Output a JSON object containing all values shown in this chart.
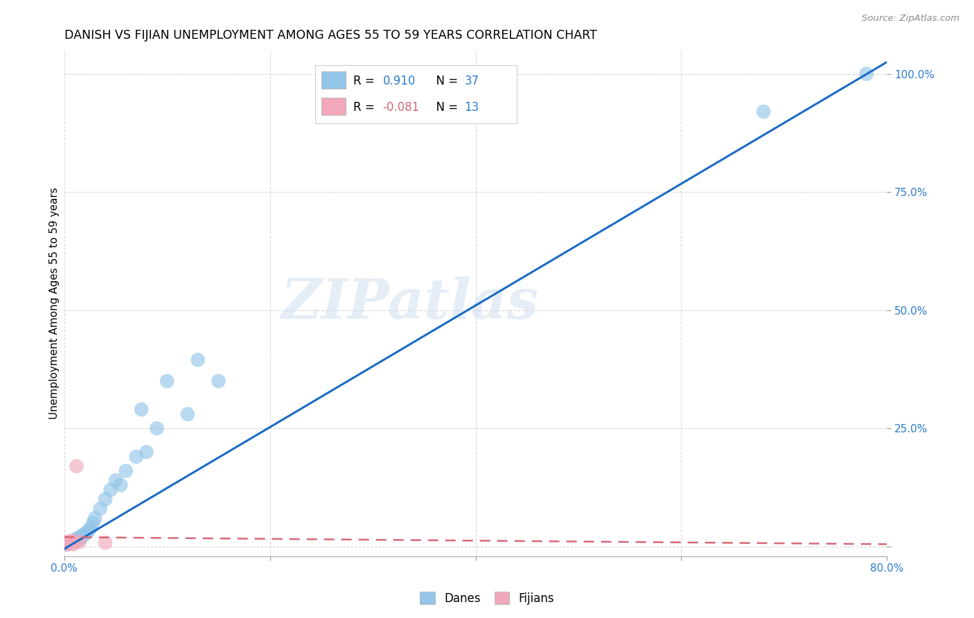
{
  "title": "DANISH VS FIJIAN UNEMPLOYMENT AMONG AGES 55 TO 59 YEARS CORRELATION CHART",
  "source": "Source: ZipAtlas.com",
  "ylabel": "Unemployment Among Ages 55 to 59 years",
  "xlim": [
    0.0,
    0.8
  ],
  "ylim": [
    -0.02,
    1.05
  ],
  "danes_R": "0.910",
  "danes_N": 37,
  "fijians_R": "-0.081",
  "fijians_N": 13,
  "danes_color": "#92C5E8",
  "fijians_color": "#F2A8BA",
  "danes_line_color": "#1A6BC4",
  "fijians_line_color": "#D46878",
  "watermark_text": "ZIPatlas",
  "danes_x": [
    0.001,
    0.002,
    0.003,
    0.004,
    0.005,
    0.006,
    0.007,
    0.008,
    0.009,
    0.01,
    0.012,
    0.013,
    0.015,
    0.016,
    0.018,
    0.02,
    0.022,
    0.024,
    0.026,
    0.028,
    0.03,
    0.035,
    0.04,
    0.045,
    0.05,
    0.055,
    0.06,
    0.07,
    0.075,
    0.08,
    0.09,
    0.1,
    0.12,
    0.13,
    0.15,
    0.68,
    0.78
  ],
  "danes_y": [
    0.005,
    0.005,
    0.005,
    0.008,
    0.01,
    0.008,
    0.01,
    0.012,
    0.01,
    0.012,
    0.015,
    0.018,
    0.015,
    0.02,
    0.025,
    0.025,
    0.03,
    0.035,
    0.04,
    0.05,
    0.06,
    0.08,
    0.1,
    0.12,
    0.14,
    0.13,
    0.16,
    0.19,
    0.29,
    0.2,
    0.25,
    0.35,
    0.28,
    0.395,
    0.35,
    0.92,
    1.0
  ],
  "fijians_x": [
    0.001,
    0.002,
    0.003,
    0.004,
    0.005,
    0.006,
    0.007,
    0.008,
    0.009,
    0.01,
    0.012,
    0.015,
    0.04
  ],
  "fijians_y": [
    0.005,
    0.008,
    0.01,
    0.005,
    0.008,
    0.01,
    0.012,
    0.01,
    0.005,
    0.01,
    0.17,
    0.01,
    0.008
  ],
  "background_color": "#FFFFFF",
  "grid_color": "#CCCCCC",
  "danes_line_x0": 0.0,
  "danes_line_y0": -0.005,
  "danes_line_x1": 0.8,
  "danes_line_y1": 1.025,
  "fijians_line_x0": 0.0,
  "fijians_line_y0": 0.02,
  "fijians_line_x1": 0.8,
  "fijians_line_y1": 0.005
}
